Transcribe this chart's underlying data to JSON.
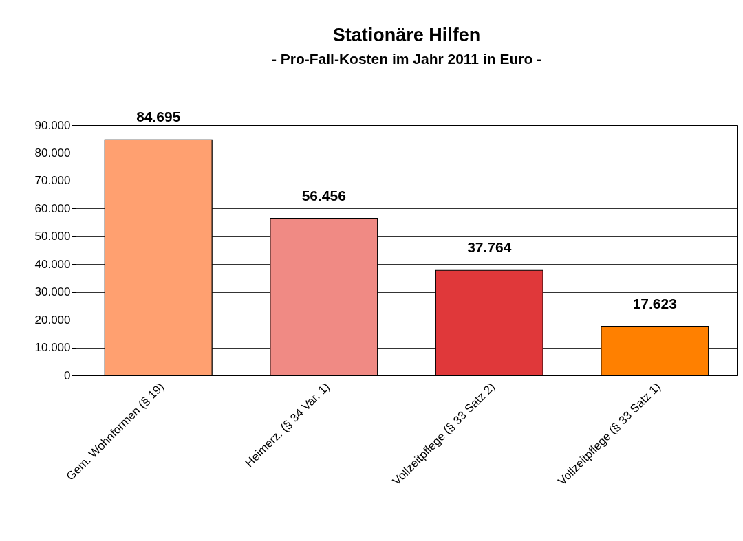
{
  "chart_data": {
    "type": "bar",
    "title": "Stationäre Hilfen",
    "subtitle": "- Pro-Fall-Kosten im Jahr 2011 in Euro -",
    "categories": [
      "Gem. Wohnformen (§ 19)",
      "Heimerz. (§ 34 Var. 1)",
      "Vollzeitpflege (§ 33 Satz 2)",
      "Vollzeitpflege (§ 33 Satz 1)"
    ],
    "values": [
      84695,
      56456,
      37764,
      17623
    ],
    "colors": [
      "#ffa070",
      "#f08a84",
      "#e0383a",
      "#ff8000"
    ],
    "value_labels": [
      "84.695",
      "56.456",
      "37.764",
      "17.623"
    ],
    "ylim": [
      0,
      90000
    ],
    "yticks": [
      {
        "value": 0,
        "label": "0"
      },
      {
        "value": 10000,
        "label": "10.000"
      },
      {
        "value": 20000,
        "label": "20.000"
      },
      {
        "value": 30000,
        "label": "30.000"
      },
      {
        "value": 40000,
        "label": "40.000"
      },
      {
        "value": 50000,
        "label": "50.000"
      },
      {
        "value": 60000,
        "label": "60.000"
      },
      {
        "value": 70000,
        "label": "70.000"
      },
      {
        "value": 80000,
        "label": "80.000"
      },
      {
        "value": 90000,
        "label": "90.000"
      }
    ],
    "grid": "y"
  }
}
